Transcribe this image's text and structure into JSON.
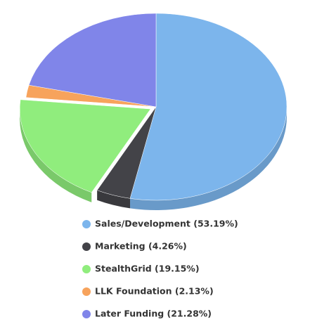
{
  "chart_data": {
    "type": "pie3d",
    "categories": [
      "Sales/Development (53.19%)",
      "Marketing (4.26%)",
      "StealthGrid (19.15%)",
      "LLK Foundation (2.13%)",
      "Later Funding (21.28%)"
    ],
    "values": [
      53.19,
      4.26,
      19.15,
      2.13,
      21.28
    ],
    "colors": [
      "#7cb5ec",
      "#434348",
      "#90ed7d",
      "#f7a35c",
      "#8085e9"
    ],
    "sliced": [
      false,
      false,
      true,
      false,
      false
    ]
  }
}
